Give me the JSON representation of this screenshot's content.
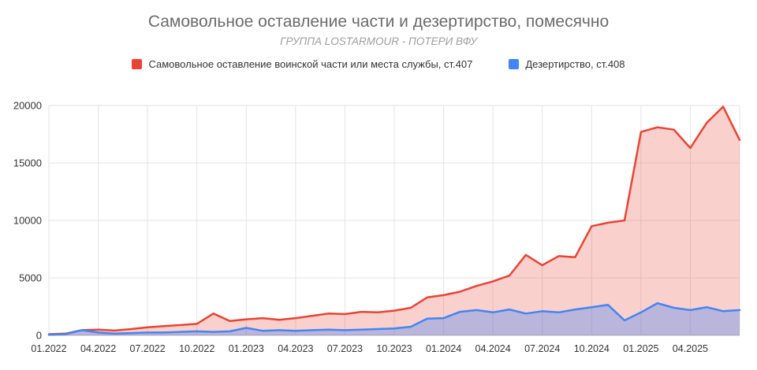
{
  "chart_data": {
    "type": "area",
    "title": "Самовольное оставление части и дезертирство, помесячно",
    "subtitle": "ГРУППА LOSTARMOUR - ПОТЕРИ ВФУ",
    "xlabel": "",
    "ylabel": "",
    "ylim": [
      0,
      20000
    ],
    "yticks": [
      0,
      5000,
      10000,
      15000,
      20000
    ],
    "grid": true,
    "legend_position": "top",
    "tick_every": 3,
    "x": [
      "01.2022",
      "02.2022",
      "03.2022",
      "04.2022",
      "05.2022",
      "06.2022",
      "07.2022",
      "08.2022",
      "09.2022",
      "10.2022",
      "11.2022",
      "12.2022",
      "01.2023",
      "02.2023",
      "03.2023",
      "04.2023",
      "05.2023",
      "06.2023",
      "07.2023",
      "08.2023",
      "09.2023",
      "10.2023",
      "11.2023",
      "12.2023",
      "01.2024",
      "02.2024",
      "03.2024",
      "04.2024",
      "05.2024",
      "06.2024",
      "07.2024",
      "08.2024",
      "09.2024",
      "10.2024",
      "11.2024",
      "12.2024",
      "01.2025",
      "02.2025",
      "03.2025",
      "04.2025",
      "05.2025",
      "06.2025",
      "07.2025"
    ],
    "series": [
      {
        "name": "Самовольное оставление воинской части или места службы, ст.407",
        "color": "#EA4335",
        "fill": "rgba(234,67,53,0.25)",
        "values": [
          100,
          150,
          450,
          500,
          420,
          550,
          700,
          800,
          900,
          1000,
          1900,
          1250,
          1400,
          1500,
          1350,
          1500,
          1700,
          1900,
          1850,
          2050,
          2000,
          2150,
          2400,
          3300,
          3500,
          3800,
          4300,
          4700,
          5200,
          7000,
          6100,
          6900,
          6800,
          9500,
          9800,
          10000,
          17700,
          18100,
          17900,
          16300,
          18500,
          19900,
          17000
        ]
      },
      {
        "name": "Дезертирство, ст.408",
        "color": "#4285F4",
        "fill": "rgba(66,133,244,0.35)",
        "values": [
          50,
          100,
          450,
          250,
          150,
          200,
          250,
          250,
          300,
          350,
          300,
          350,
          650,
          400,
          450,
          400,
          450,
          500,
          450,
          500,
          550,
          600,
          750,
          1450,
          1500,
          2050,
          2200,
          2000,
          2250,
          1900,
          2100,
          2000,
          2250,
          2450,
          2650,
          1300,
          2000,
          2800,
          2400,
          2200,
          2450,
          2100,
          2200
        ]
      }
    ]
  }
}
